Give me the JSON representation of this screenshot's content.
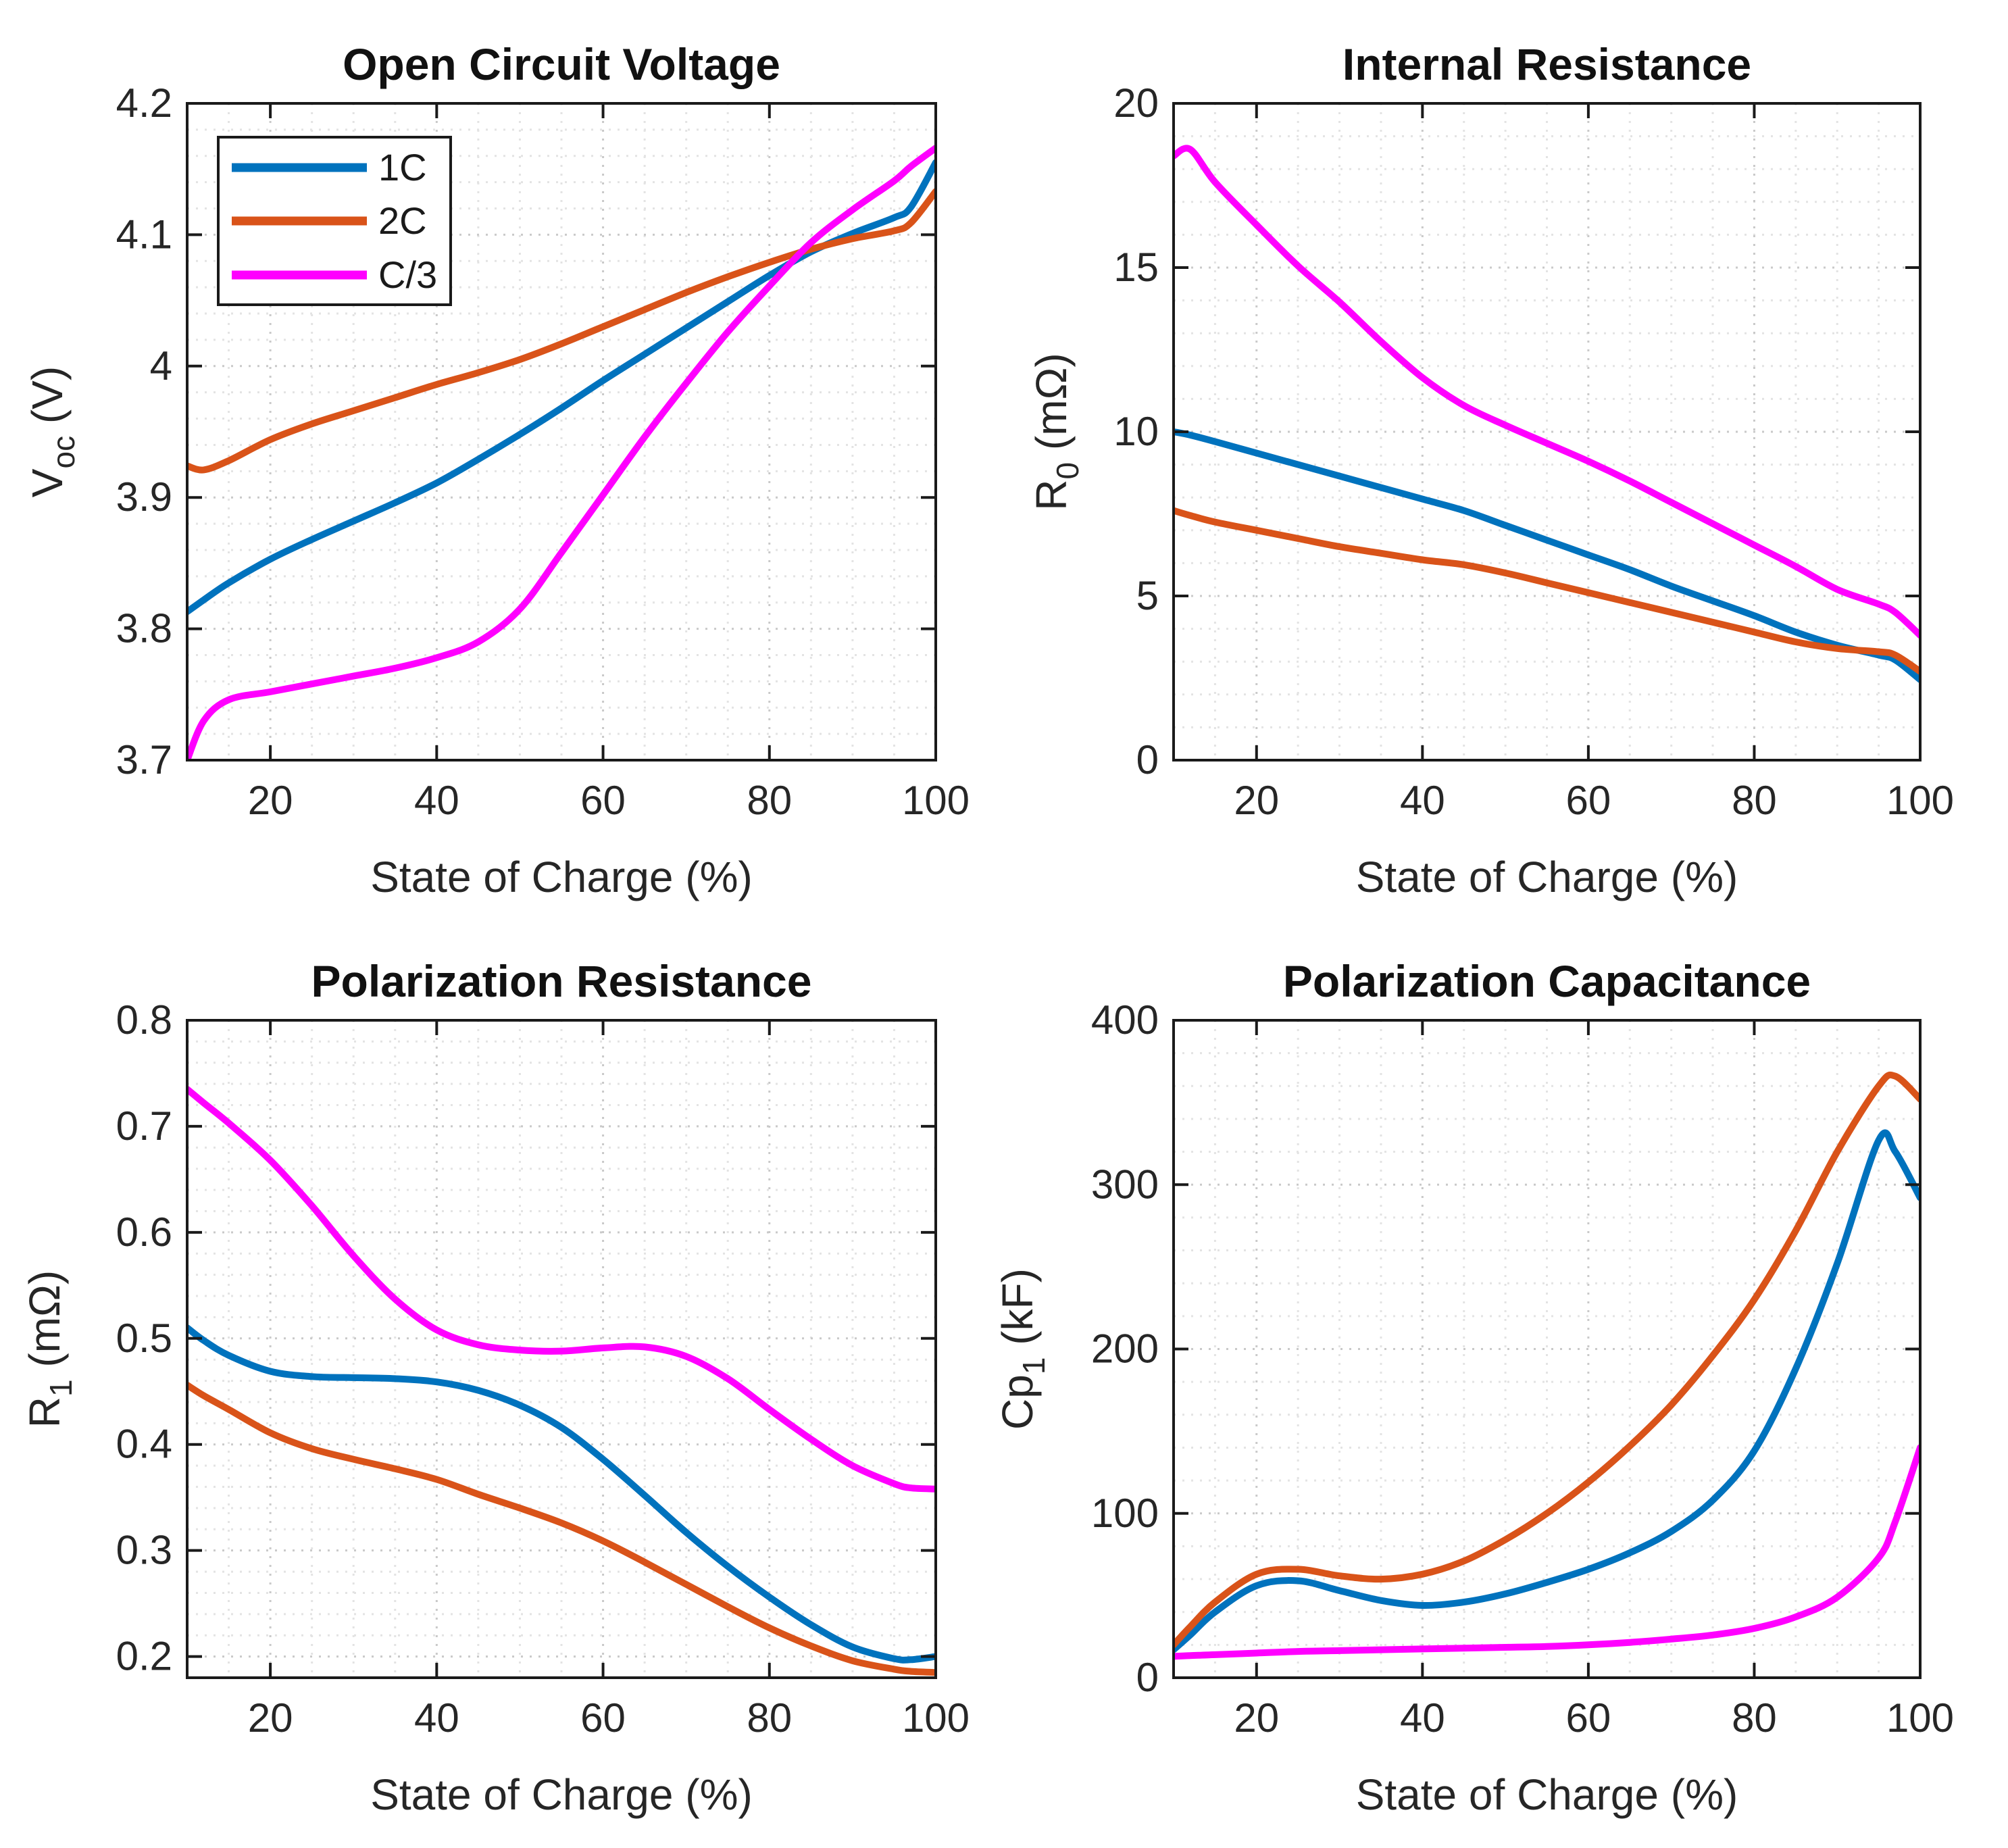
{
  "figure": {
    "background": "#ffffff",
    "axis_color": "#1a1a1a",
    "tick_text_color": "#262626",
    "grid_major_color": "#c9c9c9",
    "grid_minor_color": "#e3e3e3",
    "series_colors": {
      "1C": "#0072BD",
      "2C": "#D95319",
      "C/3": "#FF00FF"
    },
    "legend": {
      "plot": "ocv",
      "entries": [
        {
          "label": "1C",
          "color": "#0072BD"
        },
        {
          "label": "2C",
          "color": "#D95319"
        },
        {
          "label": "C/3",
          "color": "#FF00FF"
        }
      ]
    }
  },
  "chart_data": [
    {
      "id": "ocv",
      "type": "line",
      "title": "Open Circuit Voltage",
      "xlabel": "State of Charge (%)",
      "ylabel": "V_oc (V)",
      "ylabel_parts": {
        "pre": "V",
        "sub": "oc",
        "post": " (V)"
      },
      "xlim": [
        10,
        100
      ],
      "ylim": [
        3.7,
        4.2
      ],
      "xticks": [
        20,
        40,
        60,
        80,
        100
      ],
      "yticks": [
        {
          "v": 3.7,
          "label": "3.7"
        },
        {
          "v": 3.8,
          "label": "3.8"
        },
        {
          "v": 3.9,
          "label": "3.9"
        },
        {
          "v": 4.0,
          "label": "4"
        },
        {
          "v": 4.1,
          "label": "4.1"
        },
        {
          "v": 4.2,
          "label": "4.2"
        }
      ],
      "x_minor_step": 5,
      "y_minor_step": 0.02,
      "legend": true,
      "x": [
        10,
        12,
        15,
        20,
        25,
        30,
        35,
        40,
        45,
        50,
        55,
        60,
        65,
        70,
        75,
        80,
        85,
        90,
        95,
        97,
        100
      ],
      "series": [
        {
          "name": "1C",
          "color": "#0072BD",
          "values": [
            3.813,
            3.822,
            3.835,
            3.853,
            3.868,
            3.882,
            3.896,
            3.911,
            3.929,
            3.948,
            3.968,
            3.989,
            4.009,
            4.029,
            4.049,
            4.069,
            4.087,
            4.101,
            4.113,
            4.121,
            4.155
          ]
        },
        {
          "name": "2C",
          "color": "#D95319",
          "values": [
            3.924,
            3.921,
            3.928,
            3.944,
            3.956,
            3.966,
            3.976,
            3.986,
            3.995,
            4.005,
            4.017,
            4.03,
            4.043,
            4.056,
            4.068,
            4.079,
            4.089,
            4.097,
            4.103,
            4.109,
            4.133
          ]
        },
        {
          "name": "C/3",
          "color": "#FF00FF",
          "values": [
            3.7,
            3.73,
            3.746,
            3.752,
            3.758,
            3.764,
            3.77,
            3.778,
            3.79,
            3.815,
            3.858,
            3.902,
            3.946,
            3.987,
            4.026,
            4.061,
            4.094,
            4.119,
            4.141,
            4.152,
            4.166
          ]
        }
      ]
    },
    {
      "id": "r0",
      "type": "line",
      "title": "Internal Resistance",
      "xlabel": "State of Charge (%)",
      "ylabel": "R_0 (mΩ)",
      "ylabel_parts": {
        "pre": "R",
        "sub": "0",
        "post": " (mΩ)"
      },
      "xlim": [
        10,
        100
      ],
      "ylim": [
        0,
        20
      ],
      "xticks": [
        20,
        40,
        60,
        80,
        100
      ],
      "yticks": [
        {
          "v": 0,
          "label": "0"
        },
        {
          "v": 5,
          "label": "5"
        },
        {
          "v": 10,
          "label": "10"
        },
        {
          "v": 15,
          "label": "15"
        },
        {
          "v": 20,
          "label": "20"
        }
      ],
      "x_minor_step": 5,
      "y_minor_step": 1,
      "legend": false,
      "x": [
        10,
        12,
        15,
        20,
        25,
        30,
        35,
        40,
        45,
        50,
        55,
        60,
        65,
        70,
        75,
        80,
        85,
        90,
        95,
        97,
        100
      ],
      "series": [
        {
          "name": "1C",
          "color": "#0072BD",
          "values": [
            10.0,
            9.9,
            9.7,
            9.35,
            9.0,
            8.65,
            8.3,
            7.95,
            7.6,
            7.15,
            6.7,
            6.25,
            5.8,
            5.3,
            4.85,
            4.4,
            3.9,
            3.5,
            3.2,
            3.05,
            2.45
          ]
        },
        {
          "name": "2C",
          "color": "#D95319",
          "values": [
            7.6,
            7.45,
            7.25,
            7.0,
            6.75,
            6.5,
            6.3,
            6.1,
            5.95,
            5.7,
            5.4,
            5.1,
            4.8,
            4.5,
            4.2,
            3.9,
            3.6,
            3.4,
            3.3,
            3.2,
            2.7
          ]
        },
        {
          "name": "C/3",
          "color": "#FF00FF",
          "values": [
            18.4,
            18.6,
            17.6,
            16.3,
            15.05,
            13.95,
            12.75,
            11.65,
            10.8,
            10.2,
            9.65,
            9.1,
            8.5,
            7.85,
            7.2,
            6.55,
            5.9,
            5.2,
            4.75,
            4.5,
            3.8
          ]
        }
      ]
    },
    {
      "id": "r1",
      "type": "line",
      "title": "Polarization Resistance",
      "xlabel": "State of Charge (%)",
      "ylabel": "R_1 (mΩ)",
      "ylabel_parts": {
        "pre": "R",
        "sub": "1",
        "post": " (mΩ)"
      },
      "xlim": [
        10,
        100
      ],
      "ylim": [
        0.18,
        0.8
      ],
      "xticks": [
        20,
        40,
        60,
        80,
        100
      ],
      "yticks": [
        {
          "v": 0.2,
          "label": "0.2"
        },
        {
          "v": 0.3,
          "label": "0.3"
        },
        {
          "v": 0.4,
          "label": "0.4"
        },
        {
          "v": 0.5,
          "label": "0.5"
        },
        {
          "v": 0.6,
          "label": "0.6"
        },
        {
          "v": 0.7,
          "label": "0.7"
        },
        {
          "v": 0.8,
          "label": "0.8"
        }
      ],
      "x_minor_step": 5,
      "y_minor_step": 0.02,
      "legend": false,
      "x": [
        10,
        12,
        15,
        20,
        25,
        30,
        35,
        40,
        45,
        50,
        55,
        60,
        65,
        70,
        75,
        80,
        85,
        90,
        95,
        97,
        100
      ],
      "series": [
        {
          "name": "1C",
          "color": "#0072BD",
          "values": [
            0.51,
            0.498,
            0.484,
            0.469,
            0.464,
            0.463,
            0.462,
            0.459,
            0.451,
            0.437,
            0.416,
            0.386,
            0.352,
            0.317,
            0.285,
            0.256,
            0.23,
            0.209,
            0.198,
            0.197,
            0.2
          ]
        },
        {
          "name": "2C",
          "color": "#D95319",
          "values": [
            0.456,
            0.446,
            0.433,
            0.411,
            0.396,
            0.386,
            0.377,
            0.367,
            0.353,
            0.34,
            0.326,
            0.309,
            0.289,
            0.268,
            0.247,
            0.227,
            0.21,
            0.196,
            0.188,
            0.186,
            0.185
          ]
        },
        {
          "name": "C/3",
          "color": "#FF00FF",
          "values": [
            0.735,
            0.722,
            0.703,
            0.668,
            0.625,
            0.578,
            0.537,
            0.508,
            0.494,
            0.489,
            0.488,
            0.491,
            0.492,
            0.483,
            0.462,
            0.433,
            0.405,
            0.38,
            0.363,
            0.359,
            0.358
          ]
        }
      ]
    },
    {
      "id": "cp1",
      "type": "line",
      "title": "Polarization Capacitance",
      "xlabel": "State of Charge (%)",
      "ylabel": "Cp_1 (kF)",
      "ylabel_parts": {
        "pre": "Cp",
        "sub": "1",
        "post": " (kF)"
      },
      "xlim": [
        10,
        100
      ],
      "ylim": [
        0,
        400
      ],
      "xticks": [
        20,
        40,
        60,
        80,
        100
      ],
      "yticks": [
        {
          "v": 0,
          "label": "0"
        },
        {
          "v": 100,
          "label": "100"
        },
        {
          "v": 200,
          "label": "200"
        },
        {
          "v": 300,
          "label": "300"
        },
        {
          "v": 400,
          "label": "400"
        }
      ],
      "x_minor_step": 5,
      "y_minor_step": 20,
      "legend": false,
      "x": [
        10,
        12,
        15,
        20,
        25,
        30,
        35,
        40,
        45,
        50,
        55,
        60,
        65,
        70,
        75,
        80,
        85,
        90,
        95,
        97,
        100
      ],
      "series": [
        {
          "name": "1C",
          "color": "#0072BD",
          "values": [
            17,
            26,
            40,
            56,
            59,
            53,
            47,
            44,
            46,
            51,
            58,
            66,
            76,
            89,
            108,
            138,
            188,
            252,
            327,
            320,
            292
          ]
        },
        {
          "name": "2C",
          "color": "#D95319",
          "values": [
            20,
            31,
            46,
            63,
            66,
            62,
            60,
            63,
            71,
            84,
            100,
            119,
            141,
            166,
            196,
            230,
            272,
            320,
            360,
            366,
            352
          ]
        },
        {
          "name": "C/3",
          "color": "#FF00FF",
          "values": [
            13,
            13.5,
            14,
            15,
            16,
            16.5,
            17,
            17.5,
            18,
            18.5,
            19,
            20,
            21.5,
            23.5,
            26,
            30,
            37,
            49,
            73,
            95,
            140
          ]
        }
      ]
    }
  ]
}
